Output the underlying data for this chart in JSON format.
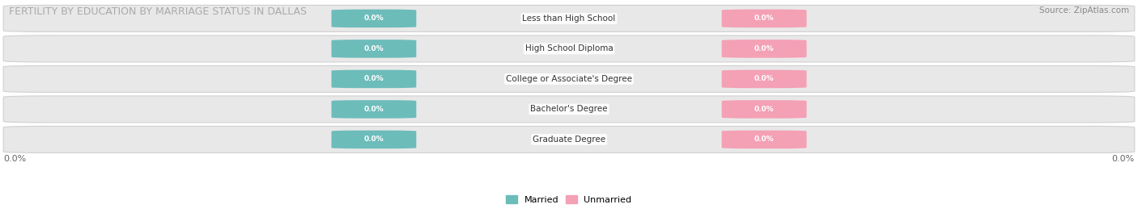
{
  "title": "FERTILITY BY EDUCATION BY MARRIAGE STATUS IN DALLAS",
  "source": "Source: ZipAtlas.com",
  "categories": [
    "Less than High School",
    "High School Diploma",
    "College or Associate's Degree",
    "Bachelor's Degree",
    "Graduate Degree"
  ],
  "married_values": [
    0.0,
    0.0,
    0.0,
    0.0,
    0.0
  ],
  "unmarried_values": [
    0.0,
    0.0,
    0.0,
    0.0,
    0.0
  ],
  "married_color": "#6cbcba",
  "unmarried_color": "#f4a0b5",
  "row_bg_color": "#e8e8e8",
  "row_edge_color": "#d0d0d0",
  "title_fontsize": 9,
  "source_fontsize": 7.5,
  "tick_label": "0.0%",
  "fig_width": 14.06,
  "fig_height": 2.69,
  "dpi": 100
}
